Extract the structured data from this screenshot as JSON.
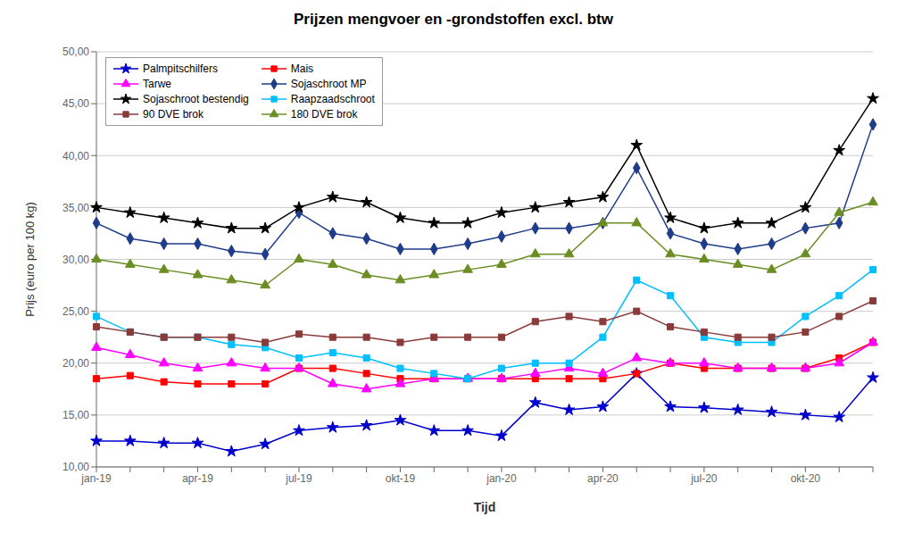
{
  "chart_data": {
    "type": "line",
    "title": "Prijzen mengvoer en -grondstoffen excl. btw",
    "xlabel": "Tijd",
    "ylabel": "Prijs (euro per 100 kg)",
    "categories": [
      "jan-19",
      null,
      null,
      "apr-19",
      null,
      null,
      "jul-19",
      null,
      null,
      "okt-19",
      null,
      null,
      "jan-20",
      null,
      null,
      "apr-20",
      null,
      null,
      "jul-20",
      null,
      null,
      "okt-20",
      null,
      null
    ],
    "ylim": [
      10,
      50
    ],
    "yticks": [
      {
        "value": 10,
        "label": "10,00"
      },
      {
        "value": 15,
        "label": "15,00"
      },
      {
        "value": 20,
        "label": "20,00"
      },
      {
        "value": 25,
        "label": "25,00"
      },
      {
        "value": 30,
        "label": "30,00"
      },
      {
        "value": 35,
        "label": "35,00"
      },
      {
        "value": 40,
        "label": "40,00"
      },
      {
        "value": 45,
        "label": "45,00"
      },
      {
        "value": 50,
        "label": "50,00"
      }
    ],
    "grid": true,
    "legend": "upper left",
    "series": [
      {
        "name": "Palmpitschilfers",
        "color": "#0000CD",
        "marker": "star",
        "values": [
          12.5,
          12.5,
          12.3,
          12.3,
          11.5,
          12.2,
          13.5,
          13.8,
          14.0,
          14.5,
          13.5,
          13.5,
          13.0,
          16.2,
          15.5,
          15.8,
          19.0,
          15.8,
          15.7,
          15.5,
          15.3,
          15.0,
          14.8,
          18.6
        ]
      },
      {
        "name": "Mais",
        "color": "#FF0000",
        "marker": "square",
        "values": [
          18.5,
          18.8,
          18.2,
          18.0,
          18.0,
          18.0,
          19.5,
          19.5,
          19.0,
          18.5,
          18.5,
          18.5,
          18.5,
          18.5,
          18.5,
          18.5,
          19.0,
          20.0,
          19.5,
          19.5,
          19.5,
          19.5,
          20.5,
          22.0
        ]
      },
      {
        "name": "Tarwe",
        "color": "#FF00FF",
        "marker": "triangle",
        "values": [
          21.5,
          20.8,
          20.0,
          19.5,
          20.0,
          19.5,
          19.5,
          18.0,
          17.5,
          18.0,
          18.5,
          18.5,
          18.5,
          19.0,
          19.5,
          19.0,
          20.5,
          20.0,
          20.0,
          19.5,
          19.5,
          19.5,
          20.0,
          22.0
        ]
      },
      {
        "name": "Sojaschroot MP",
        "color": "#1F3C88",
        "marker": "diamond",
        "values": [
          33.5,
          32.0,
          31.5,
          31.5,
          30.8,
          30.5,
          34.5,
          32.5,
          32.0,
          31.0,
          31.0,
          31.5,
          32.2,
          33.0,
          33.0,
          33.5,
          38.8,
          32.5,
          31.5,
          31.0,
          31.5,
          33.0,
          33.5,
          43.0
        ]
      },
      {
        "name": "Sojaschroot bestendig",
        "color": "#000000",
        "marker": "star",
        "values": [
          35.0,
          34.5,
          34.0,
          33.5,
          33.0,
          33.0,
          35.0,
          36.0,
          35.5,
          34.0,
          33.5,
          33.5,
          34.5,
          35.0,
          35.5,
          36.0,
          41.0,
          34.0,
          33.0,
          33.5,
          33.5,
          35.0,
          40.5,
          45.5
        ]
      },
      {
        "name": "Raapzaadschroot",
        "color": "#00BFFF",
        "marker": "square",
        "values": [
          24.5,
          23.0,
          22.5,
          22.5,
          21.8,
          21.5,
          20.5,
          21.0,
          20.5,
          19.5,
          19.0,
          18.5,
          19.5,
          20.0,
          20.0,
          22.5,
          28.0,
          26.5,
          22.5,
          22.0,
          22.0,
          24.5,
          26.5,
          29.0
        ]
      },
      {
        "name": "90 DVE brok",
        "color": "#8B3A3A",
        "marker": "square",
        "values": [
          23.5,
          23.0,
          22.5,
          22.5,
          22.5,
          22.0,
          22.8,
          22.5,
          22.5,
          22.0,
          22.5,
          22.5,
          22.5,
          24.0,
          24.5,
          24.0,
          25.0,
          23.5,
          23.0,
          22.5,
          22.5,
          23.0,
          24.5,
          26.0
        ]
      },
      {
        "name": "180 DVE brok",
        "color": "#6B8E23",
        "marker": "triangle",
        "values": [
          30.0,
          29.5,
          29.0,
          28.5,
          28.0,
          27.5,
          30.0,
          29.5,
          28.5,
          28.0,
          28.5,
          29.0,
          29.5,
          30.5,
          30.5,
          33.5,
          33.5,
          30.5,
          30.0,
          29.5,
          29.0,
          30.5,
          34.5,
          35.5
        ]
      }
    ]
  }
}
